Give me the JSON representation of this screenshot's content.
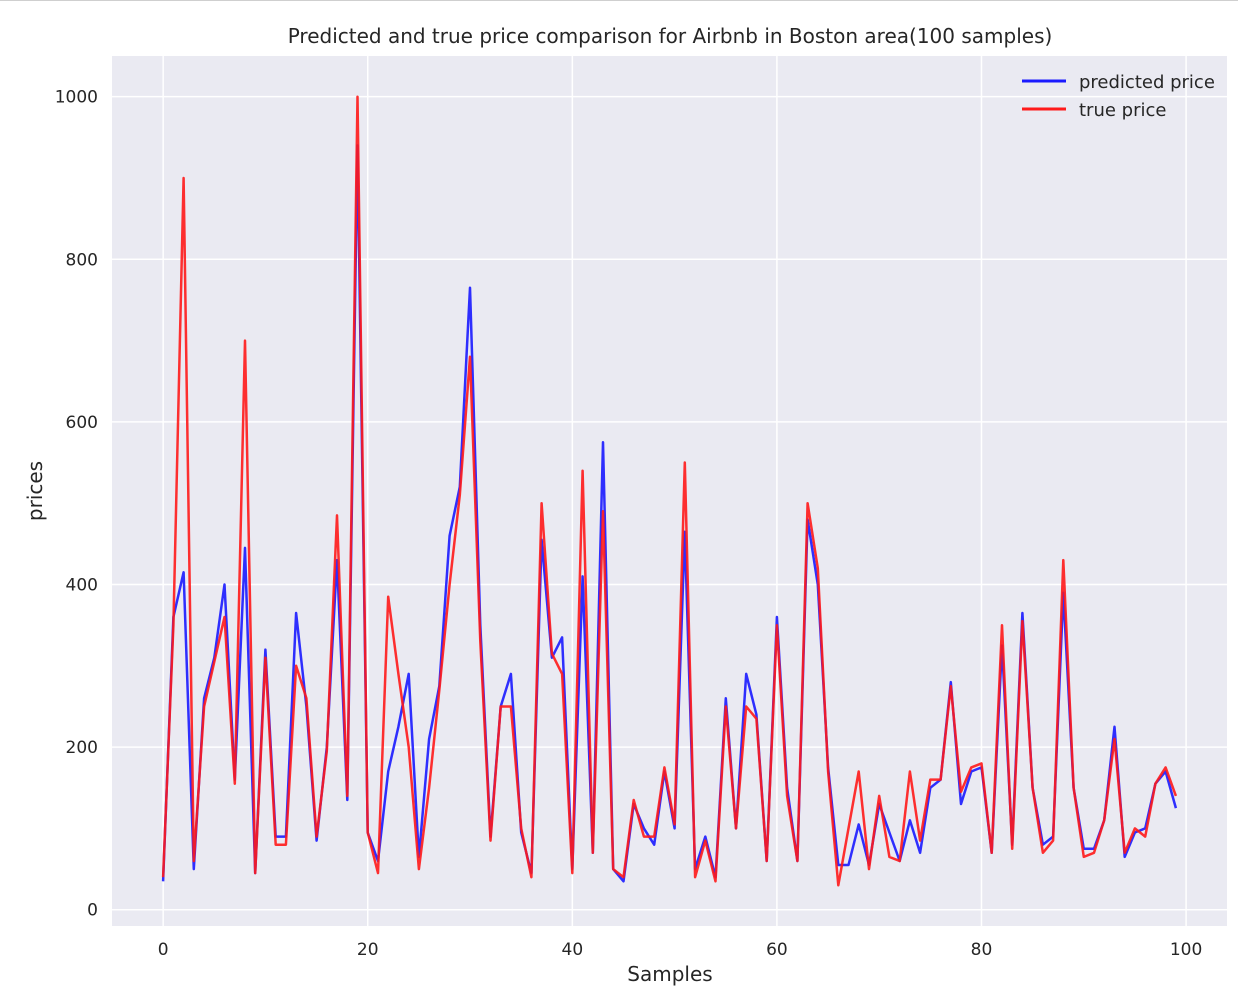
{
  "chart_data": {
    "type": "line",
    "title": "Predicted and true price comparison for Airbnb in Boston area(100 samples)",
    "xlabel": "Samples",
    "ylabel": "prices",
    "xlim": [
      -5,
      104
    ],
    "ylim": [
      -20,
      1050
    ],
    "xticks": [
      0,
      20,
      40,
      60,
      80,
      100
    ],
    "yticks": [
      0,
      200,
      400,
      600,
      800,
      1000
    ],
    "grid": true,
    "legend_position": "top-right",
    "colors": {
      "background": "#eaeaf2",
      "grid": "#ffffff",
      "predicted": "#1a1aff",
      "true": "#ff1a1a"
    },
    "x": [
      0,
      1,
      2,
      3,
      4,
      5,
      6,
      7,
      8,
      9,
      10,
      11,
      12,
      13,
      14,
      15,
      16,
      17,
      18,
      19,
      20,
      21,
      22,
      23,
      24,
      25,
      26,
      27,
      28,
      29,
      30,
      31,
      32,
      33,
      34,
      35,
      36,
      37,
      38,
      39,
      40,
      41,
      42,
      43,
      44,
      45,
      46,
      47,
      48,
      49,
      50,
      51,
      52,
      53,
      54,
      55,
      56,
      57,
      58,
      59,
      60,
      61,
      62,
      63,
      64,
      65,
      66,
      67,
      68,
      69,
      70,
      71,
      72,
      73,
      74,
      75,
      76,
      77,
      78,
      79,
      80,
      81,
      82,
      83,
      84,
      85,
      86,
      87,
      88,
      89,
      90,
      91,
      92,
      93,
      94,
      95,
      96,
      97,
      98,
      99
    ],
    "series": [
      {
        "name": "predicted price",
        "values": [
          35,
          360,
          415,
          50,
          260,
          310,
          400,
          160,
          445,
          45,
          320,
          90,
          90,
          365,
          250,
          85,
          200,
          430,
          135,
          940,
          95,
          60,
          170,
          225,
          290,
          65,
          210,
          275,
          460,
          520,
          765,
          350,
          90,
          250,
          290,
          95,
          45,
          455,
          310,
          335,
          50,
          410,
          70,
          575,
          50,
          35,
          130,
          100,
          80,
          170,
          100,
          465,
          50,
          90,
          40,
          260,
          100,
          290,
          240,
          60,
          360,
          150,
          60,
          480,
          400,
          175,
          55,
          55,
          105,
          55,
          130,
          95,
          60,
          110,
          70,
          150,
          160,
          280,
          130,
          170,
          175,
          70,
          325,
          80,
          365,
          150,
          80,
          90,
          390,
          150,
          75,
          75,
          110,
          225,
          65,
          95,
          100,
          155,
          170,
          125
        ]
      },
      {
        "name": "true price",
        "values": [
          40,
          350,
          900,
          60,
          250,
          305,
          360,
          155,
          700,
          45,
          310,
          80,
          80,
          300,
          260,
          90,
          195,
          485,
          140,
          1000,
          95,
          45,
          385,
          290,
          200,
          50,
          150,
          270,
          400,
          510,
          680,
          330,
          85,
          250,
          250,
          100,
          40,
          500,
          315,
          290,
          45,
          540,
          70,
          490,
          50,
          40,
          135,
          90,
          90,
          175,
          105,
          550,
          40,
          85,
          35,
          250,
          100,
          250,
          235,
          60,
          350,
          140,
          60,
          500,
          420,
          170,
          30,
          100,
          170,
          50,
          140,
          65,
          60,
          170,
          85,
          160,
          160,
          275,
          145,
          175,
          180,
          70,
          350,
          75,
          355,
          150,
          70,
          85,
          430,
          150,
          65,
          70,
          110,
          210,
          70,
          100,
          90,
          155,
          175,
          140
        ]
      }
    ]
  }
}
